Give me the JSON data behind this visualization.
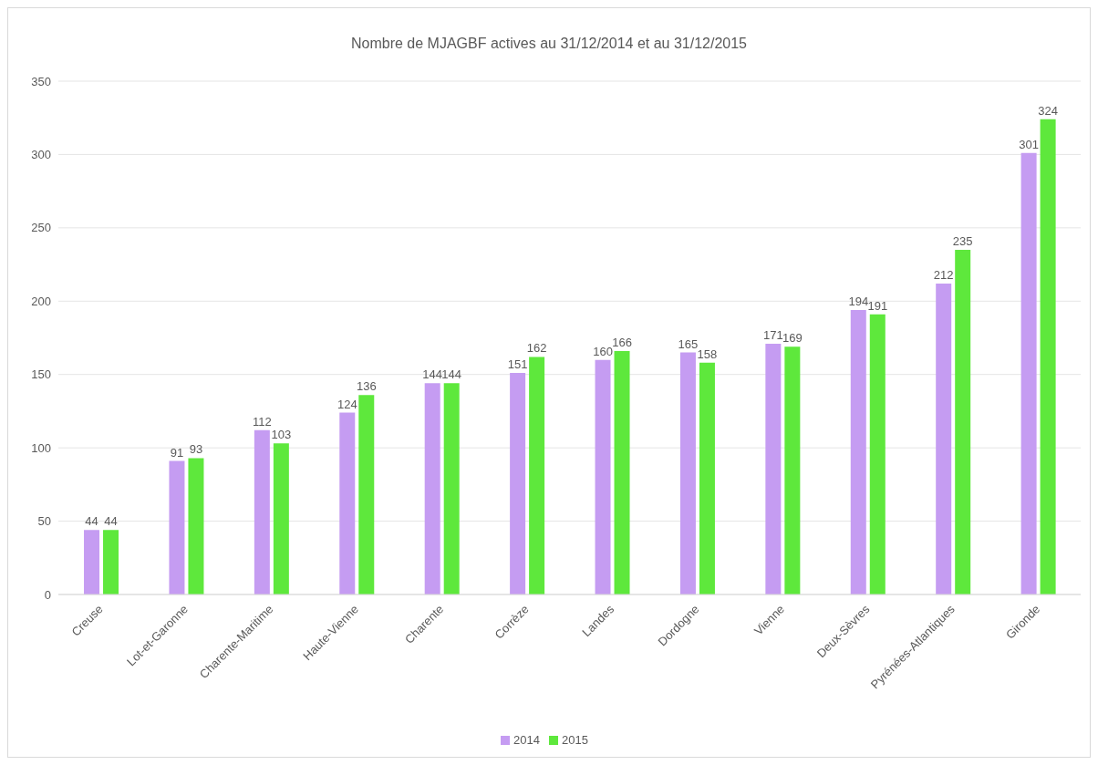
{
  "chart_data": {
    "type": "bar",
    "title": "Nombre de MJAGBF actives au 31/12/2014 et au 31/12/2015",
    "categories": [
      "Creuse",
      "Lot-et-Garonne",
      "Charente-Maritime",
      "Haute-Vienne",
      "Charente",
      "Corrèze",
      "Landes",
      "Dordogne",
      "Vienne",
      "Deux-Sèvres",
      "Pyrénées-Atlantiques",
      "Gironde"
    ],
    "series": [
      {
        "name": "2014",
        "color": "#c59cf2",
        "values": [
          44,
          91,
          112,
          124,
          144,
          151,
          160,
          165,
          171,
          194,
          212,
          301
        ]
      },
      {
        "name": "2015",
        "color": "#5ee83c",
        "values": [
          44,
          93,
          103,
          136,
          144,
          162,
          166,
          158,
          169,
          191,
          235,
          324
        ]
      }
    ],
    "ylim": [
      0,
      350
    ],
    "yticks": [
      0,
      50,
      100,
      150,
      200,
      250,
      300,
      350
    ],
    "grid": "y",
    "legend": "bottom",
    "data_labels": true
  }
}
